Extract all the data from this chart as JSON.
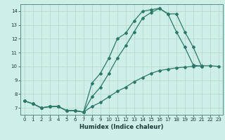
{
  "bg_color": "#ceeee8",
  "grid_color": "#b8d8d0",
  "line_color": "#2a7a6a",
  "xlabel": "Humidex (Indice chaleur)",
  "ylim": [
    6.5,
    14.5
  ],
  "xlim": [
    -0.5,
    23.5
  ],
  "yticks": [
    7,
    8,
    9,
    10,
    11,
    12,
    13,
    14
  ],
  "xticks": [
    0,
    1,
    2,
    3,
    4,
    5,
    6,
    7,
    8,
    9,
    10,
    11,
    12,
    13,
    14,
    15,
    16,
    17,
    18,
    19,
    20,
    21,
    22,
    23
  ],
  "line1_x": [
    0,
    1,
    2,
    3,
    4,
    5,
    6,
    7,
    8,
    9,
    10,
    11,
    12,
    13,
    14,
    15,
    16,
    17,
    18,
    19,
    20,
    21
  ],
  "line1_y": [
    7.5,
    7.3,
    7.0,
    7.1,
    7.1,
    6.8,
    6.8,
    6.7,
    8.8,
    9.5,
    10.6,
    12.0,
    12.4,
    13.3,
    14.0,
    14.1,
    14.2,
    13.8,
    13.8,
    12.5,
    11.4,
    10.0
  ],
  "line2_x": [
    0,
    1,
    2,
    3,
    4,
    5,
    6,
    7,
    8,
    9,
    10,
    11,
    12,
    13,
    14,
    15,
    16,
    17,
    18,
    19,
    20,
    21
  ],
  "line2_y": [
    7.5,
    7.3,
    7.0,
    7.1,
    7.1,
    6.8,
    6.8,
    6.7,
    7.8,
    8.5,
    9.5,
    10.6,
    11.5,
    12.5,
    13.5,
    13.9,
    14.2,
    13.8,
    12.5,
    11.4,
    10.1,
    10.0
  ],
  "line3_x": [
    0,
    1,
    2,
    3,
    4,
    5,
    6,
    7,
    8,
    9,
    10,
    11,
    12,
    13,
    14,
    15,
    16,
    17,
    18,
    19,
    20,
    21,
    22,
    23
  ],
  "line3_y": [
    7.5,
    7.3,
    7.0,
    7.1,
    7.1,
    6.8,
    6.8,
    6.7,
    7.1,
    7.4,
    7.8,
    8.2,
    8.5,
    8.9,
    9.2,
    9.5,
    9.7,
    9.8,
    9.9,
    9.95,
    10.0,
    10.05,
    10.05,
    10.0
  ]
}
